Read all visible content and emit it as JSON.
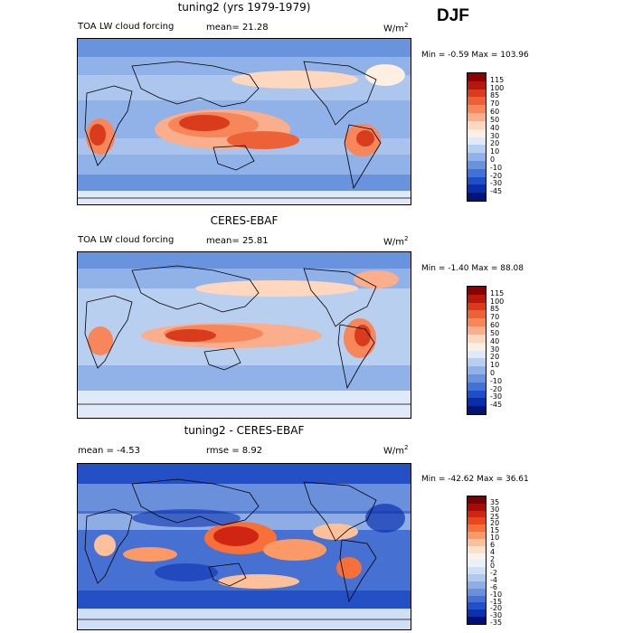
{
  "season": "DJF",
  "units_label": "W/m",
  "units_exp": "2",
  "panels": [
    {
      "title": "tuning2 (yrs 1979-1979)",
      "variable": "TOA LW cloud forcing",
      "mean_label": "mean=",
      "mean_value": "21.28",
      "minmax_text": "Min =  -0.59 Max = 103.96",
      "colorbar_ticks": [
        "115",
        "100",
        "85",
        "70",
        "60",
        "50",
        "40",
        "30",
        "20",
        "10",
        "0",
        "-10",
        "-20",
        "-30",
        "-45"
      ]
    },
    {
      "title": "CERES-EBAF",
      "variable": "TOA LW cloud forcing",
      "mean_label": "mean=",
      "mean_value": "25.81",
      "minmax_text": "Min =  -1.40 Max =  88.08",
      "colorbar_ticks": [
        "115",
        "100",
        "85",
        "70",
        "60",
        "50",
        "40",
        "30",
        "20",
        "10",
        "0",
        "-10",
        "-20",
        "-30",
        "-45"
      ]
    },
    {
      "title": "tuning2 - CERES-EBAF",
      "mean_label": "mean =",
      "mean_value": "-4.53",
      "rmse_label": "rmse =",
      "rmse_value": "8.92",
      "minmax_text": "Min = -42.62 Max =  36.61",
      "colorbar_ticks": [
        "35",
        "30",
        "25",
        "20",
        "15",
        "10",
        "6",
        "4",
        "2",
        "0",
        "-2",
        "-4",
        "-6",
        "-10",
        "-15",
        "-20",
        "-30",
        "-35"
      ]
    }
  ],
  "colors": {
    "abs_scale": [
      "#8b0000",
      "#b5190c",
      "#d83c1d",
      "#ec6135",
      "#f7865a",
      "#fbae8c",
      "#fdd8be",
      "#fdf0e3",
      "#dfe9f8",
      "#b9cff0",
      "#91b2e8",
      "#6a93de",
      "#4272d5",
      "#1d4fc9",
      "#0a2ea8",
      "#001577"
    ],
    "diff_scale": [
      "#7a0000",
      "#a80a06",
      "#cf2512",
      "#e9481f",
      "#f77039",
      "#fb9a66",
      "#fcc09b",
      "#fde0cc",
      "#fdf2ea",
      "#e9f1fb",
      "#cfdff5",
      "#b0c8ee",
      "#8eade4",
      "#6a8fdb",
      "#4670d1",
      "#2450c6",
      "#0a31b0",
      "#000f78"
    ]
  }
}
